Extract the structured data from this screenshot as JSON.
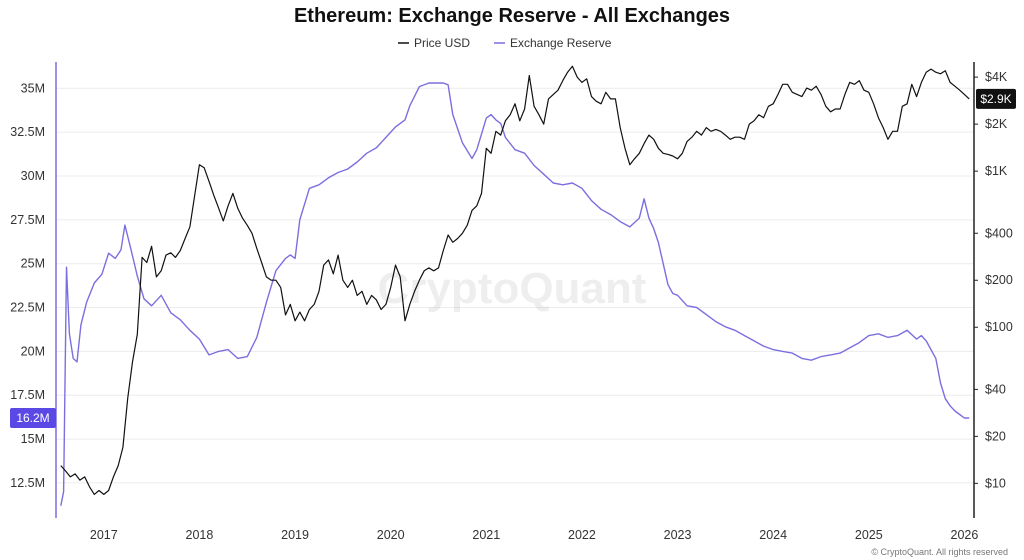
{
  "chart_data": {
    "type": "line",
    "title": "Ethereum: Exchange Reserve - All Exchanges",
    "legend": {
      "placement": "top-center",
      "items": [
        "Price USD",
        "Exchange Reserve"
      ]
    },
    "grid": "horizontal",
    "watermark": "CryptoQuant",
    "copyright": "© CryptoQuant. All rights reserved",
    "colors": {
      "price": "#111111",
      "reserve": "#7b6fe0",
      "reserve_badge": "#5b49e6",
      "price_badge": "#111111"
    },
    "x_axis": {
      "ticks": [
        "2017",
        "2018",
        "2019",
        "2020",
        "2021",
        "2022",
        "2023",
        "2024",
        "2025",
        "2026"
      ],
      "range": [
        2016.5,
        2026.1
      ]
    },
    "y_left": {
      "label": "Exchange Reserve",
      "range": [
        10500000,
        36500000
      ],
      "ticks": [
        {
          "v": 12500000,
          "t": "12.5M"
        },
        {
          "v": 15000000,
          "t": "15M"
        },
        {
          "v": 17500000,
          "t": "17.5M"
        },
        {
          "v": 20000000,
          "t": "20M"
        },
        {
          "v": 22500000,
          "t": "22.5M"
        },
        {
          "v": 25000000,
          "t": "25M"
        },
        {
          "v": 27500000,
          "t": "27.5M"
        },
        {
          "v": 30000000,
          "t": "30M"
        },
        {
          "v": 32500000,
          "t": "32.5M"
        },
        {
          "v": 35000000,
          "t": "35M"
        }
      ]
    },
    "y_right": {
      "label": "Price USD",
      "scale": "log",
      "range": [
        6,
        5000
      ],
      "ticks": [
        {
          "v": 10,
          "t": "$10"
        },
        {
          "v": 20,
          "t": "$20"
        },
        {
          "v": 40,
          "t": "$40"
        },
        {
          "v": 100,
          "t": "$100"
        },
        {
          "v": 200,
          "t": "$200"
        },
        {
          "v": 400,
          "t": "$400"
        },
        {
          "v": 1000,
          "t": "$1K"
        },
        {
          "v": 2000,
          "t": "$2K"
        },
        {
          "v": 4000,
          "t": "$4K"
        }
      ]
    },
    "current": {
      "reserve_label": "16.2M",
      "reserve_value": 16200000,
      "price_label": "$2.9K",
      "price_value": 2900
    },
    "series": [
      {
        "name": "Exchange Reserve",
        "axis": "left",
        "x": [
          2016.55,
          2016.58,
          2016.61,
          2016.64,
          2016.68,
          2016.72,
          2016.76,
          2016.82,
          2016.9,
          2016.98,
          2017.05,
          2017.12,
          2017.18,
          2017.22,
          2017.28,
          2017.35,
          2017.42,
          2017.5,
          2017.6,
          2017.7,
          2017.8,
          2017.9,
          2018.0,
          2018.1,
          2018.2,
          2018.3,
          2018.4,
          2018.5,
          2018.6,
          2018.7,
          2018.8,
          2018.9,
          2018.95,
          2019.0,
          2019.05,
          2019.15,
          2019.25,
          2019.35,
          2019.45,
          2019.55,
          2019.65,
          2019.75,
          2019.85,
          2019.95,
          2020.05,
          2020.15,
          2020.2,
          2020.3,
          2020.4,
          2020.5,
          2020.55,
          2020.6,
          2020.65,
          2020.75,
          2020.85,
          2020.9,
          2021.0,
          2021.05,
          2021.1,
          2021.15,
          2021.2,
          2021.3,
          2021.4,
          2021.5,
          2021.6,
          2021.7,
          2021.8,
          2021.9,
          2022.0,
          2022.1,
          2022.2,
          2022.3,
          2022.4,
          2022.5,
          2022.6,
          2022.65,
          2022.7,
          2022.75,
          2022.8,
          2022.9,
          2022.95,
          2023.0,
          2023.1,
          2023.2,
          2023.3,
          2023.4,
          2023.5,
          2023.6,
          2023.7,
          2023.8,
          2023.9,
          2024.0,
          2024.1,
          2024.2,
          2024.3,
          2024.4,
          2024.5,
          2024.6,
          2024.7,
          2024.8,
          2024.9,
          2025.0,
          2025.1,
          2025.2,
          2025.3,
          2025.4,
          2025.5,
          2025.55,
          2025.6,
          2025.65,
          2025.7,
          2025.75,
          2025.8,
          2025.85,
          2025.9,
          2025.95,
          2026.0,
          2026.05
        ],
        "y": [
          11200000,
          12000000,
          24800000,
          21000000,
          19600000,
          19400000,
          21500000,
          22800000,
          23900000,
          24400000,
          25600000,
          25300000,
          25800000,
          27200000,
          25900000,
          24300000,
          23000000,
          22600000,
          23200000,
          22200000,
          21800000,
          21200000,
          20700000,
          19800000,
          20000000,
          20100000,
          19600000,
          19700000,
          20800000,
          22800000,
          24600000,
          25300000,
          25500000,
          25300000,
          27500000,
          29300000,
          29500000,
          29900000,
          30200000,
          30400000,
          30800000,
          31300000,
          31600000,
          32200000,
          32800000,
          33200000,
          34000000,
          35100000,
          35300000,
          35300000,
          35300000,
          35200000,
          33500000,
          31900000,
          31000000,
          31500000,
          33300000,
          33500000,
          33200000,
          33000000,
          32200000,
          31500000,
          31300000,
          30600000,
          30100000,
          29600000,
          29500000,
          29600000,
          29300000,
          28600000,
          28100000,
          27800000,
          27400000,
          27100000,
          27600000,
          28700000,
          27600000,
          27000000,
          26200000,
          23800000,
          23300000,
          23200000,
          22600000,
          22500000,
          22100000,
          21700000,
          21400000,
          21200000,
          20900000,
          20600000,
          20300000,
          20100000,
          20000000,
          19900000,
          19600000,
          19500000,
          19700000,
          19800000,
          19900000,
          20200000,
          20500000,
          20900000,
          21000000,
          20800000,
          20900000,
          21200000,
          20700000,
          20900000,
          20600000,
          20100000,
          19600000,
          18200000,
          17300000,
          16900000,
          16600000,
          16400000,
          16200000,
          16200000
        ]
      },
      {
        "name": "Price USD",
        "axis": "right",
        "x": [
          2016.55,
          2016.6,
          2016.65,
          2016.7,
          2016.75,
          2016.8,
          2016.85,
          2016.9,
          2016.95,
          2017.0,
          2017.05,
          2017.1,
          2017.15,
          2017.2,
          2017.25,
          2017.3,
          2017.35,
          2017.4,
          2017.45,
          2017.5,
          2017.55,
          2017.6,
          2017.65,
          2017.7,
          2017.75,
          2017.8,
          2017.85,
          2017.9,
          2017.95,
          2018.0,
          2018.05,
          2018.1,
          2018.15,
          2018.2,
          2018.25,
          2018.3,
          2018.35,
          2018.4,
          2018.45,
          2018.5,
          2018.55,
          2018.6,
          2018.65,
          2018.7,
          2018.75,
          2018.8,
          2018.85,
          2018.9,
          2018.95,
          2019.0,
          2019.05,
          2019.1,
          2019.15,
          2019.2,
          2019.25,
          2019.3,
          2019.35,
          2019.4,
          2019.45,
          2019.5,
          2019.55,
          2019.6,
          2019.65,
          2019.7,
          2019.75,
          2019.8,
          2019.85,
          2019.9,
          2019.95,
          2020.0,
          2020.05,
          2020.1,
          2020.15,
          2020.2,
          2020.25,
          2020.3,
          2020.35,
          2020.4,
          2020.45,
          2020.5,
          2020.55,
          2020.6,
          2020.65,
          2020.7,
          2020.75,
          2020.8,
          2020.85,
          2020.9,
          2020.95,
          2021.0,
          2021.05,
          2021.1,
          2021.15,
          2021.2,
          2021.25,
          2021.3,
          2021.35,
          2021.4,
          2021.45,
          2021.5,
          2021.55,
          2021.6,
          2021.65,
          2021.7,
          2021.75,
          2021.8,
          2021.85,
          2021.9,
          2021.95,
          2022.0,
          2022.05,
          2022.1,
          2022.15,
          2022.2,
          2022.25,
          2022.3,
          2022.35,
          2022.4,
          2022.45,
          2022.5,
          2022.55,
          2022.6,
          2022.65,
          2022.7,
          2022.75,
          2022.8,
          2022.85,
          2022.9,
          2022.95,
          2023.0,
          2023.05,
          2023.1,
          2023.15,
          2023.2,
          2023.25,
          2023.3,
          2023.35,
          2023.4,
          2023.45,
          2023.5,
          2023.55,
          2023.6,
          2023.65,
          2023.7,
          2023.75,
          2023.8,
          2023.85,
          2023.9,
          2023.95,
          2024.0,
          2024.05,
          2024.1,
          2024.15,
          2024.2,
          2024.25,
          2024.3,
          2024.35,
          2024.4,
          2024.45,
          2024.5,
          2024.55,
          2024.6,
          2024.65,
          2024.7,
          2024.75,
          2024.8,
          2024.85,
          2024.9,
          2024.95,
          2025.0,
          2025.05,
          2025.1,
          2025.15,
          2025.2,
          2025.25,
          2025.3,
          2025.35,
          2025.4,
          2025.45,
          2025.5,
          2025.55,
          2025.6,
          2025.65,
          2025.7,
          2025.75,
          2025.8,
          2025.85,
          2025.9,
          2025.95,
          2026.0,
          2026.05
        ],
        "y": [
          13,
          12,
          11,
          11.5,
          10.5,
          11,
          9.5,
          8.5,
          9,
          8.5,
          9,
          11,
          13,
          17,
          35,
          60,
          90,
          280,
          260,
          330,
          210,
          230,
          290,
          300,
          280,
          310,
          370,
          440,
          700,
          1100,
          1050,
          860,
          700,
          580,
          480,
          600,
          720,
          580,
          500,
          450,
          400,
          320,
          260,
          210,
          200,
          200,
          180,
          120,
          140,
          110,
          125,
          110,
          130,
          140,
          170,
          250,
          270,
          220,
          290,
          200,
          180,
          200,
          160,
          170,
          140,
          160,
          150,
          130,
          140,
          180,
          250,
          210,
          110,
          140,
          170,
          200,
          230,
          240,
          230,
          240,
          310,
          390,
          350,
          370,
          400,
          450,
          560,
          600,
          720,
          1400,
          1300,
          1800,
          1700,
          2100,
          2300,
          2700,
          2100,
          2500,
          4100,
          2600,
          2300,
          2000,
          2900,
          3100,
          3300,
          3800,
          4300,
          4700,
          4000,
          3700,
          3900,
          3000,
          2800,
          2700,
          3200,
          2900,
          2900,
          1900,
          1400,
          1100,
          1200,
          1300,
          1500,
          1700,
          1600,
          1400,
          1300,
          1280,
          1250,
          1200,
          1300,
          1550,
          1650,
          1800,
          1700,
          1900,
          1800,
          1850,
          1800,
          1700,
          1600,
          1650,
          1650,
          1600,
          2000,
          2100,
          2300,
          2200,
          2600,
          2700,
          3100,
          3600,
          3600,
          3200,
          3100,
          3000,
          3400,
          3300,
          3500,
          3100,
          2600,
          2400,
          2500,
          2500,
          3100,
          3700,
          3600,
          3800,
          3300,
          3200,
          2700,
          2200,
          1900,
          1600,
          1800,
          1800,
          2600,
          2700,
          3600,
          3000,
          3700,
          4300,
          4500,
          4300,
          4200,
          4400,
          3700,
          3500,
          3300,
          3100,
          2900
        ]
      }
    ]
  }
}
